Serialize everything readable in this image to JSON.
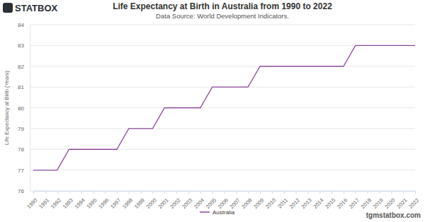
{
  "chart_data": {
    "type": "line",
    "title": "Life Expectancy at Birth in Australia from 1990 to 2022",
    "subtitle": "Data Source: World Development Indicators.",
    "y_label": "Life Expectancy at Birth (Years)",
    "annotations": [
      "STATBOX",
      "tgmstatbox.com"
    ],
    "x": [
      1990,
      1991,
      1992,
      1993,
      1994,
      1995,
      1996,
      1997,
      1998,
      1999,
      2000,
      2001,
      2002,
      2003,
      2004,
      2005,
      2006,
      2007,
      2008,
      2009,
      2010,
      2011,
      2012,
      2013,
      2014,
      2015,
      2016,
      2017,
      2018,
      2019,
      2020,
      2021,
      2022
    ],
    "series": [
      {
        "name": "Australia",
        "color": "#8b4a9c",
        "values": [
          77,
          77,
          77,
          78,
          78,
          78,
          78,
          78,
          79,
          79,
          79,
          80,
          80,
          80,
          80,
          81,
          81,
          81,
          81,
          82,
          82,
          82,
          82,
          82,
          82,
          82,
          82,
          83,
          83,
          83,
          83,
          83,
          83
        ]
      }
    ],
    "xlim": [
      1990,
      2022
    ],
    "xticks": [
      1990,
      1991,
      1992,
      1993,
      1994,
      1995,
      1996,
      1997,
      1998,
      1999,
      2000,
      2001,
      2002,
      2003,
      2004,
      2005,
      2006,
      2007,
      2008,
      2009,
      2010,
      2011,
      2012,
      2013,
      2014,
      2015,
      2016,
      2017,
      2018,
      2019,
      2020,
      2021,
      2022
    ],
    "ylim": [
      76,
      84
    ],
    "yticks": [
      76,
      77,
      78,
      79,
      80,
      81,
      82,
      83,
      84
    ],
    "grid": true,
    "legend": "bottom"
  }
}
